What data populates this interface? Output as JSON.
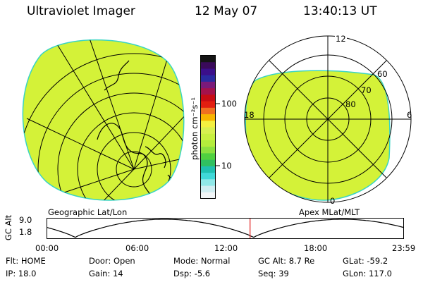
{
  "header": {
    "instrument": "Ultraviolet Imager",
    "date": "12 May 07",
    "time": "13:40:13 UT"
  },
  "colorbar": {
    "unit_label": "photon cm⁻²s⁻¹",
    "ticks": [
      "100",
      "10"
    ],
    "colors": [
      "#141414",
      "#3a0a5a",
      "#3b0f8a",
      "#2a2aa0",
      "#7a1a7a",
      "#a4124c",
      "#c80c14",
      "#e21e10",
      "#f07020",
      "#f8b400",
      "#f4f040",
      "#d8f050",
      "#c8f040",
      "#b4ec3c",
      "#8ce040",
      "#50d040",
      "#30c060",
      "#20c0b0",
      "#40d8d8",
      "#90e8e8",
      "#d0eef2",
      "#f2f6f8"
    ]
  },
  "left_panel": {
    "label": "Geographic Lat/Lon",
    "fill_color": "#d4f238",
    "edge_color": "#38d4c4"
  },
  "right_panel": {
    "label": "Apex MLat/MLT",
    "mlt_labels": {
      "top": "12",
      "left": "18",
      "right": "6",
      "bottom": "0"
    },
    "mlat_labels": [
      "60",
      "70",
      "80"
    ],
    "fill_color": "#d4f238"
  },
  "timeline": {
    "axis_label": "GC Alt",
    "y_ticks": [
      "9.0",
      "1.8"
    ],
    "x_ticks": [
      "00:00",
      "06:00",
      "12:00",
      "18:00",
      "23:59"
    ],
    "current_marker_hours": 13.67,
    "marker_color": "#e02020"
  },
  "status": {
    "flt": {
      "label": "Flt:",
      "value": "HOME"
    },
    "door": {
      "label": "Door:",
      "value": "Open"
    },
    "mode": {
      "label": "Mode:",
      "value": "Normal"
    },
    "gc_alt": {
      "label": "GC Alt:",
      "value": "8.7 Re"
    },
    "glat": {
      "label": "GLat:",
      "value": "-59.2"
    },
    "ip": {
      "label": "IP:",
      "value": "18.0"
    },
    "gain": {
      "label": "Gain:",
      "value": "14"
    },
    "dsp": {
      "label": "Dsp:",
      "value": "-5.6"
    },
    "seq": {
      "label": "Seq:",
      "value": "39"
    },
    "glon": {
      "label": "GLon:",
      "value": "117.0"
    }
  }
}
